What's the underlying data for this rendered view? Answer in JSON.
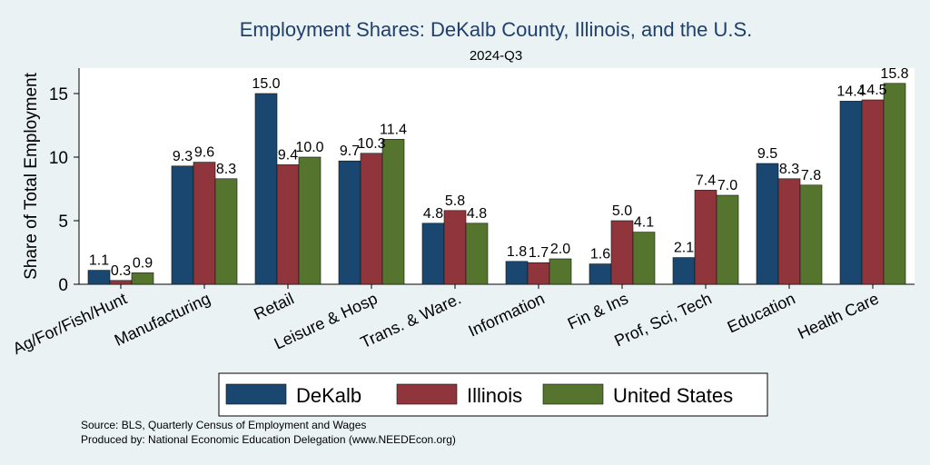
{
  "chart_data": {
    "type": "bar",
    "title": "Employment Shares: DeKalb County, Illinois, and the U.S.",
    "subtitle": "2024-Q3",
    "xlabel": "",
    "ylabel": "Share of Total Employment",
    "ylim": [
      0,
      17
    ],
    "yticks": [
      0,
      5,
      10,
      15
    ],
    "grid": false,
    "legend_position": "bottom",
    "categories": [
      "Ag/For/Fish/Hunt",
      "Manufacturing",
      "Retail",
      "Leisure & Hosp",
      "Trans. & Ware.",
      "Information",
      "Fin & Ins",
      "Prof, Sci, Tech",
      "Education",
      "Health Care"
    ],
    "series": [
      {
        "name": "DeKalb",
        "color": "#1a476f",
        "values": [
          1.1,
          9.3,
          15.0,
          9.7,
          4.8,
          1.8,
          1.6,
          2.1,
          9.5,
          14.4
        ]
      },
      {
        "name": "Illinois",
        "color": "#90353b",
        "values": [
          0.3,
          9.6,
          9.4,
          10.3,
          5.8,
          1.7,
          5.0,
          7.4,
          8.3,
          14.5
        ]
      },
      {
        "name": "United States",
        "color": "#55752f",
        "values": [
          0.9,
          8.3,
          10.0,
          11.4,
          4.8,
          2.0,
          4.1,
          7.0,
          7.8,
          15.8
        ]
      }
    ],
    "notes": [
      "Source: BLS, Quarterly Census of Employment and Wages",
      "Produced by: National Economic Education Delegation (www.NEEDEcon.org)"
    ]
  }
}
